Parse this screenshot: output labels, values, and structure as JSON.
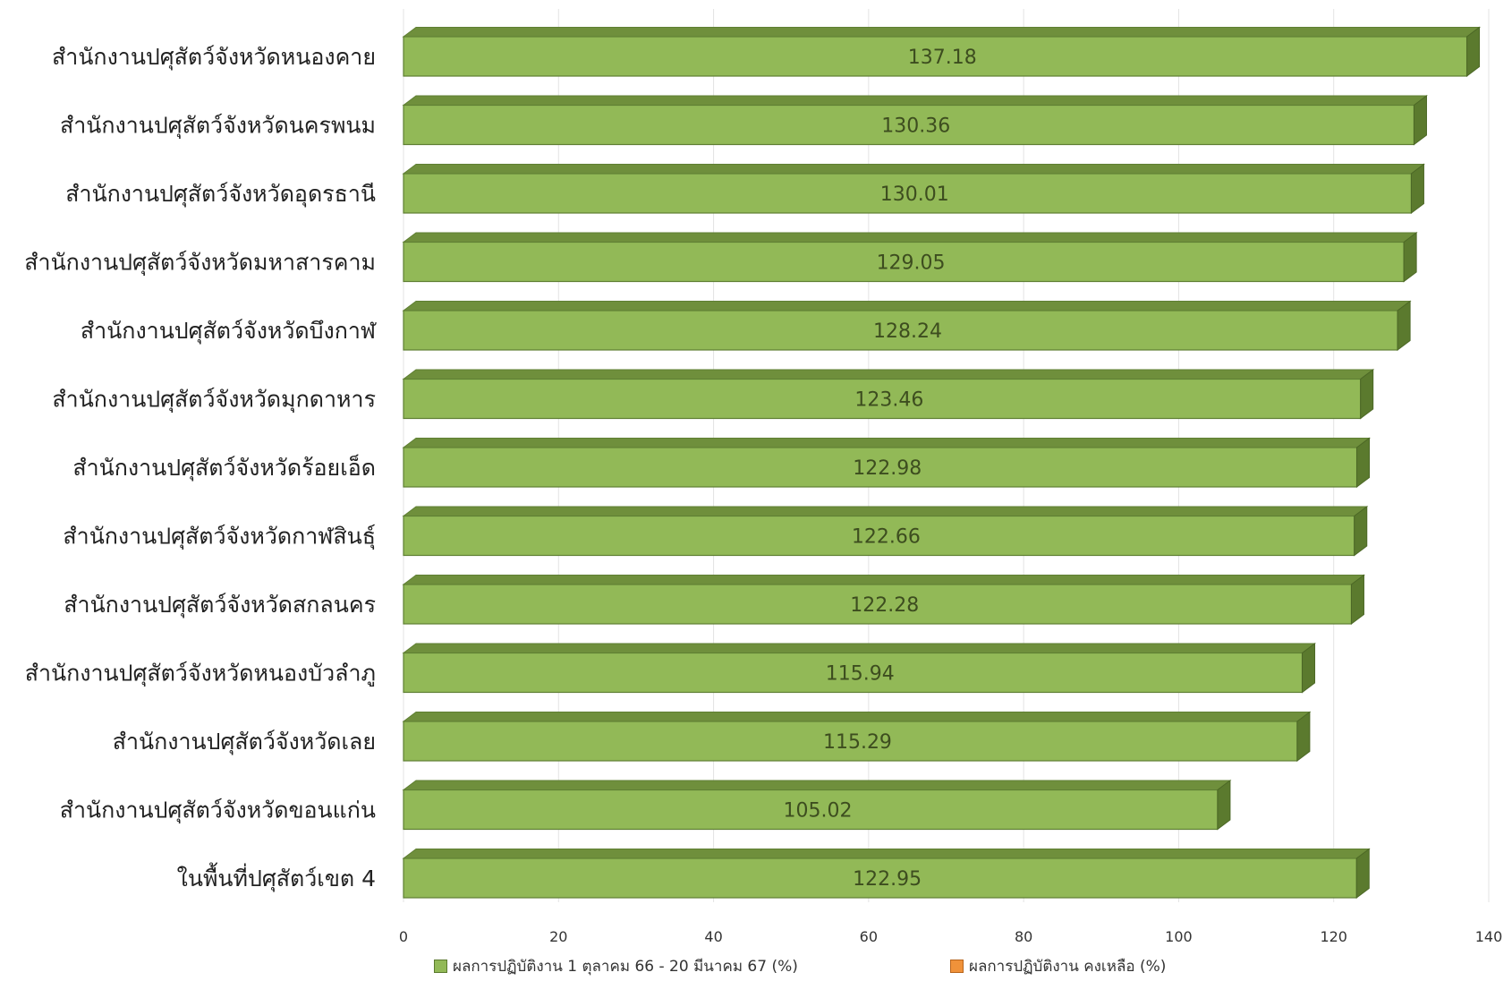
{
  "chart_data": {
    "type": "bar",
    "orientation": "horizontal",
    "style": "3d",
    "categories": [
      "สำนักงานปศุสัตว์จังหวัดหนองคาย",
      "สำนักงานปศุสัตว์จังหวัดนครพนม",
      "สำนักงานปศุสัตว์จังหวัดอุดรธานี",
      "สำนักงานปศุสัตว์จังหวัดมหาสารคาม",
      "สำนักงานปศุสัตว์จังหวัดบึงกาฬ",
      "สำนักงานปศุสัตว์จังหวัดมุกดาหาร",
      "สำนักงานปศุสัตว์จังหวัดร้อยเอ็ด",
      "สำนักงานปศุสัตว์จังหวัดกาฬสินธุ์",
      "สำนักงานปศุสัตว์จังหวัดสกลนคร",
      "สำนักงานปศุสัตว์จังหวัดหนองบัวลำภู",
      "สำนักงานปศุสัตว์จังหวัดเลย",
      "สำนักงานปศุสัตว์จังหวัดขอนแก่น",
      "ในพื้นที่ปศุสัตว์เขต 4"
    ],
    "series": [
      {
        "name": "ผลการปฏิบัติงาน 1 ตุลาคม 66 - 20 มีนาคม 67 (%)",
        "color": "#92b957",
        "values": [
          137.18,
          130.36,
          130.01,
          129.05,
          128.24,
          123.46,
          122.98,
          122.66,
          122.28,
          115.94,
          115.29,
          105.02,
          122.95
        ],
        "value_labels": [
          "137.18",
          "130.36",
          "130.01",
          "129.05",
          "128.24",
          "123.46",
          "122.98",
          "122.66",
          "122.28",
          "115.94",
          "115.29",
          "105.02",
          "122.95"
        ]
      },
      {
        "name": "ผลการปฏิบัติงาน คงเหลือ (%)",
        "color": "#f0923a",
        "values": [
          0,
          0,
          0,
          0,
          0,
          0,
          0,
          0,
          0,
          0,
          0,
          0,
          0
        ]
      }
    ],
    "xlim": [
      0,
      140
    ],
    "xticks": [
      "0",
      "20",
      "40",
      "60",
      "80",
      "100",
      "120",
      "140"
    ],
    "grid": true,
    "legend_position": "bottom"
  }
}
